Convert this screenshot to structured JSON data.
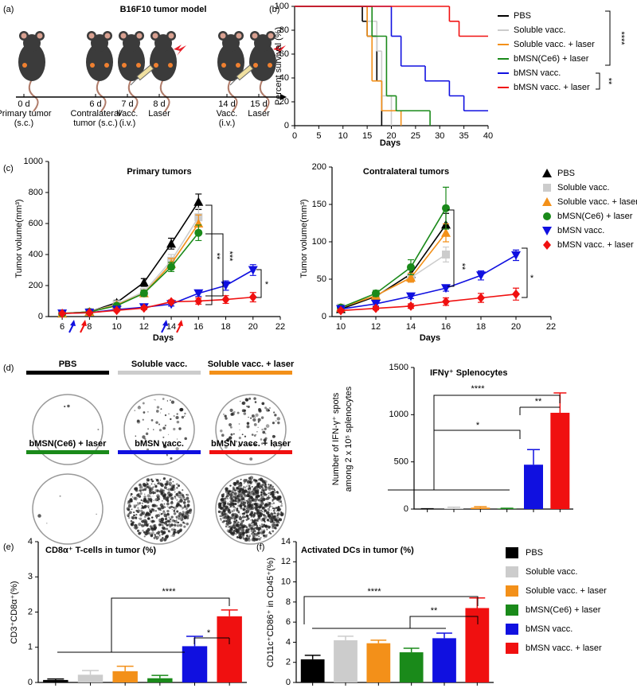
{
  "panel_labels": [
    "(a)",
    "(b)",
    "(c)",
    "(d)",
    "(e)",
    "(f)"
  ],
  "schematic": {
    "title": "B16F10 tumor model",
    "steps": [
      {
        "day": "0 d",
        "lines": [
          "Primary tumor",
          "(s.c.)"
        ]
      },
      {
        "day": "6 d",
        "lines": [
          "Contralateral",
          "tumor (s.c.)"
        ]
      },
      {
        "day": "7 d",
        "lines": [
          "Vacc.",
          "(i.v.)"
        ]
      },
      {
        "day": "8 d",
        "lines": [
          "Laser"
        ]
      },
      {
        "day": "14 d",
        "lines": [
          "Vacc.",
          "(i.v.)"
        ]
      },
      {
        "day": "15 d",
        "lines": [
          "Laser"
        ]
      }
    ]
  },
  "elispot": {
    "wells": [
      {
        "label": "PBS",
        "color": "#000000"
      },
      {
        "label": "Soluble vacc.",
        "color": "#cccccc"
      },
      {
        "label": "Soluble vacc. + laser",
        "color": "#f39019"
      },
      {
        "label": "bMSN(Ce6) + laser",
        "color": "#1a8a1a"
      },
      {
        "label": "bMSN vacc.",
        "color": "#1010e0"
      },
      {
        "label": "bMSN vacc. + laser",
        "color": "#f01010"
      }
    ]
  },
  "chart_data": [
    {
      "type": "survival",
      "x_label": "Days",
      "y_label": "Percent survival (%)",
      "xlim": [
        0,
        40
      ],
      "xticks": [
        0,
        5,
        10,
        15,
        20,
        25,
        30,
        35,
        40
      ],
      "ylim": [
        0,
        100
      ],
      "yticks": [
        0,
        20,
        40,
        60,
        80,
        100
      ],
      "legend": "right",
      "series": [
        {
          "name": "PBS",
          "color": "#000000",
          "x": [
            0,
            14,
            15,
            17,
            18
          ],
          "values": [
            100,
            87.5,
            75,
            37.5,
            0
          ]
        },
        {
          "name": "Soluble vacc.",
          "color": "#cccccc",
          "x": [
            0,
            15,
            17,
            18,
            20
          ],
          "values": [
            100,
            87.5,
            62.5,
            25,
            0
          ]
        },
        {
          "name": "Soluble vacc. + laser",
          "color": "#f39019",
          "x": [
            0,
            15,
            16,
            18,
            22
          ],
          "values": [
            100,
            75,
            37.5,
            12.5,
            0
          ]
        },
        {
          "name": "bMSN(Ce6) + laser",
          "color": "#1a8a1a",
          "x": [
            0,
            16,
            19,
            21,
            28
          ],
          "values": [
            100,
            75,
            25,
            12.5,
            0
          ]
        },
        {
          "name": "bMSN vacc.",
          "color": "#1010e0",
          "x": [
            0,
            20,
            22,
            27,
            32,
            35,
            40
          ],
          "values": [
            100,
            75,
            50,
            37.5,
            25,
            12.5,
            12.5
          ]
        },
        {
          "name": "bMSN vacc. + laser",
          "color": "#f01010",
          "x": [
            0,
            32,
            34,
            40
          ],
          "values": [
            100,
            87.5,
            75,
            75
          ]
        }
      ],
      "annotations": [
        "****",
        "**"
      ]
    },
    {
      "type": "line",
      "title": "Primary tumors",
      "x_label": "Days",
      "y_label": "Tumor volume(mm³)",
      "x": [
        6,
        8,
        10,
        12,
        14,
        16,
        18,
        20
      ],
      "xlim": [
        5,
        22
      ],
      "xticks": [
        6,
        8,
        10,
        12,
        14,
        16,
        18,
        20,
        22
      ],
      "ylim": [
        0,
        1000
      ],
      "yticks": [
        0,
        200,
        400,
        600,
        800,
        1000
      ],
      "series": [
        {
          "color": "#000000",
          "marker": "triangle",
          "values": [
            20,
            30,
            90,
            220,
            470,
            740,
            null,
            null
          ],
          "errors": [
            5,
            5,
            15,
            25,
            35,
            50,
            null,
            null
          ]
        },
        {
          "color": "#cccccc",
          "marker": "square",
          "values": [
            20,
            30,
            80,
            160,
            360,
            640,
            null,
            null
          ],
          "errors": [
            5,
            5,
            12,
            20,
            40,
            60,
            null,
            null
          ]
        },
        {
          "color": "#f39019",
          "marker": "triangle",
          "values": [
            20,
            30,
            75,
            150,
            340,
            600,
            null,
            null
          ],
          "errors": [
            5,
            5,
            12,
            20,
            35,
            55,
            null,
            null
          ]
        },
        {
          "color": "#1a8a1a",
          "marker": "circle",
          "values": [
            20,
            30,
            70,
            150,
            320,
            540,
            null,
            null
          ],
          "errors": [
            5,
            5,
            10,
            20,
            30,
            50,
            null,
            null
          ]
        },
        {
          "color": "#1010e0",
          "marker": "down-triangle",
          "values": [
            20,
            25,
            45,
            60,
            80,
            150,
            200,
            300
          ],
          "errors": [
            5,
            5,
            8,
            10,
            12,
            20,
            30,
            35
          ]
        },
        {
          "color": "#f01010",
          "marker": "diamond",
          "values": [
            20,
            25,
            40,
            55,
            95,
            100,
            110,
            125
          ],
          "errors": [
            5,
            5,
            8,
            10,
            12,
            20,
            25,
            30
          ]
        }
      ],
      "annotations": [
        "**",
        "***",
        "*"
      ]
    },
    {
      "type": "line",
      "title": "Contralateral tumors",
      "x_label": "Days",
      "y_label": "Tumor volume(mm³)",
      "x": [
        10,
        12,
        14,
        16,
        18,
        20
      ],
      "xlim": [
        9.5,
        22
      ],
      "xticks": [
        10,
        12,
        14,
        16,
        18,
        20,
        22
      ],
      "ylim": [
        0,
        200
      ],
      "yticks": [
        0,
        50,
        100,
        150,
        200
      ],
      "legend": "upper right",
      "series": [
        {
          "name": "PBS",
          "color": "#000000",
          "marker": "triangle",
          "values": [
            10,
            27,
            57,
            123,
            null,
            null
          ],
          "errors": [
            3,
            4,
            8,
            15,
            null,
            null
          ]
        },
        {
          "name": "Soluble vacc.",
          "color": "#cccccc",
          "marker": "square",
          "values": [
            12,
            28,
            52,
            83,
            null,
            null
          ],
          "errors": [
            3,
            4,
            6,
            10,
            null,
            null
          ]
        },
        {
          "name": "Soluble vacc. + laser",
          "color": "#f39019",
          "marker": "triangle",
          "values": [
            12,
            28,
            52,
            112,
            null,
            null
          ],
          "errors": [
            3,
            4,
            6,
            12,
            null,
            null
          ]
        },
        {
          "name": "bMSN(Ce6) + laser",
          "color": "#1a8a1a",
          "marker": "circle",
          "values": [
            12,
            31,
            66,
            145,
            null,
            null
          ],
          "errors": [
            3,
            4,
            10,
            28,
            null,
            null
          ]
        },
        {
          "name": "bMSN vacc.",
          "color": "#1010e0",
          "marker": "down-triangle",
          "values": [
            10,
            17,
            27,
            38,
            55,
            82
          ],
          "errors": [
            2,
            3,
            3,
            4,
            6,
            7
          ]
        },
        {
          "name": "bMSN vacc. + laser",
          "color": "#f01010",
          "marker": "diamond",
          "values": [
            8,
            11,
            14,
            20,
            25,
            30
          ],
          "errors": [
            2,
            2,
            3,
            5,
            6,
            8
          ]
        }
      ],
      "annotations": [
        "**",
        "*"
      ]
    },
    {
      "type": "bar",
      "title": "IFNγ⁺ Splenocytes",
      "y_label": [
        "Number of IFN-γ⁺ spots",
        "among 2 x 10⁵ splenocytes"
      ],
      "ylim": [
        0,
        1500
      ],
      "yticks": [
        0,
        500,
        1000,
        1500
      ],
      "colors": [
        "#000000",
        "#cccccc",
        "#f39019",
        "#1a8a1a",
        "#1010e0",
        "#f01010"
      ],
      "values": [
        2,
        10,
        15,
        5,
        470,
        1020
      ],
      "errors": [
        1,
        10,
        10,
        3,
        160,
        210
      ],
      "annotations": [
        "****",
        "**",
        "*"
      ]
    },
    {
      "type": "bar",
      "title": "CD8α⁺ T-cells in tumor (%)",
      "y_label": "CD3⁺CD8α⁺(%)",
      "ylim": [
        0,
        4
      ],
      "yticks": [
        0,
        1,
        2,
        3,
        4
      ],
      "colors": [
        "#000000",
        "#cccccc",
        "#f39019",
        "#1a8a1a",
        "#1010e0",
        "#f01010"
      ],
      "values": [
        0.07,
        0.22,
        0.32,
        0.12,
        1.03,
        1.88
      ],
      "errors": [
        0.03,
        0.12,
        0.14,
        0.08,
        0.28,
        0.18
      ],
      "annotations": [
        "****",
        "*"
      ]
    },
    {
      "type": "bar",
      "title": "Activated DCs in tumor (%)",
      "y_label": "CD11c⁺CD86⁺ in CD45⁺(%)",
      "ylim": [
        0,
        14
      ],
      "yticks": [
        0,
        2,
        4,
        6,
        8,
        10,
        12,
        14
      ],
      "colors": [
        "#000000",
        "#cccccc",
        "#f39019",
        "#1a8a1a",
        "#1010e0",
        "#f01010"
      ],
      "values": [
        2.3,
        4.2,
        3.9,
        3.0,
        4.4,
        7.4
      ],
      "errors": [
        0.4,
        0.4,
        0.3,
        0.4,
        0.5,
        1.0
      ],
      "legend_labels": [
        "PBS",
        "Soluble vacc.",
        "Soluble vacc. + laser",
        "bMSN(Ce6) + laser",
        "bMSN vacc.",
        "bMSN vacc. + laser"
      ],
      "annotations": [
        "****",
        "**"
      ]
    }
  ]
}
